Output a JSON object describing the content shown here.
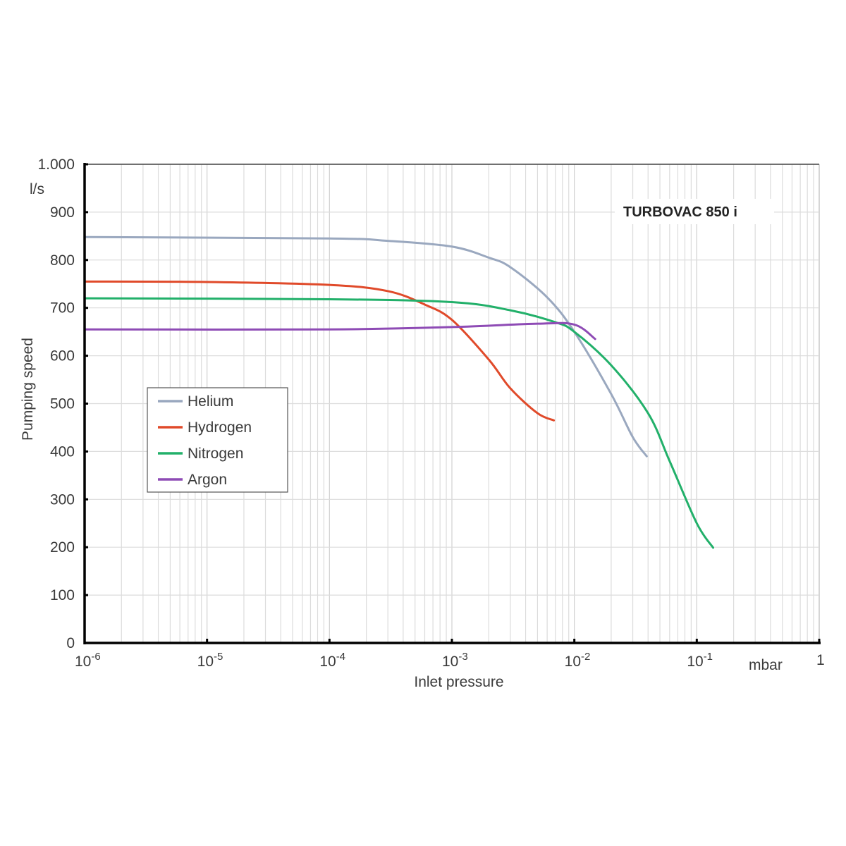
{
  "chart_data": {
    "type": "line",
    "title": "TURBOVAC 850 i",
    "xlabel": "Inlet pressure",
    "xunit": "mbar",
    "ylabel": "Pumping speed",
    "yunit": "l/s",
    "xscale": "log",
    "xlim": [
      1e-06,
      1
    ],
    "ylim": [
      0,
      1000
    ],
    "grid": true,
    "legend_position": "center-left",
    "x_tick_labels": [
      {
        "base": "10",
        "exp": "-6",
        "value": 1e-06
      },
      {
        "base": "10",
        "exp": "-5",
        "value": 1e-05
      },
      {
        "base": "10",
        "exp": "-4",
        "value": 0.0001
      },
      {
        "base": "10",
        "exp": "-3",
        "value": 0.001
      },
      {
        "base": "10",
        "exp": "-2",
        "value": 0.01
      },
      {
        "base": "10",
        "exp": "-1",
        "value": 0.1
      },
      {
        "base": "1",
        "exp": "",
        "value": 1
      }
    ],
    "y_tick_labels": [
      "0",
      "100",
      "200",
      "300",
      "400",
      "500",
      "600",
      "700",
      "800",
      "900",
      "1.000"
    ],
    "y_ticks": [
      0,
      100,
      200,
      300,
      400,
      500,
      600,
      700,
      800,
      900,
      1000
    ],
    "series": [
      {
        "name": "Helium",
        "color": "#9aa8bf",
        "x": [
          1e-06,
          0.0001,
          0.0003,
          0.001,
          0.002,
          0.003,
          0.006,
          0.01,
          0.02,
          0.03,
          0.039
        ],
        "y": [
          848,
          845,
          840,
          828,
          805,
          785,
          722,
          650,
          520,
          430,
          390
        ]
      },
      {
        "name": "Hydrogen",
        "color": "#e04a2a",
        "x": [
          1e-06,
          1e-05,
          0.0001,
          0.0003,
          0.0006,
          0.001,
          0.002,
          0.003,
          0.005,
          0.0068
        ],
        "y": [
          755,
          754,
          748,
          735,
          707,
          675,
          592,
          532,
          480,
          465
        ]
      },
      {
        "name": "Nitrogen",
        "color": "#22b06a",
        "x": [
          1e-06,
          0.0001,
          0.001,
          0.003,
          0.007,
          0.01,
          0.02,
          0.04,
          0.06,
          0.1,
          0.136
        ],
        "y": [
          720,
          718,
          712,
          695,
          670,
          650,
          580,
          480,
          380,
          250,
          199
        ]
      },
      {
        "name": "Argon",
        "color": "#8e4bb5",
        "x": [
          1e-06,
          0.0001,
          0.001,
          0.005,
          0.01,
          0.0148
        ],
        "y": [
          655,
          655,
          660,
          667,
          665,
          635
        ]
      }
    ]
  }
}
